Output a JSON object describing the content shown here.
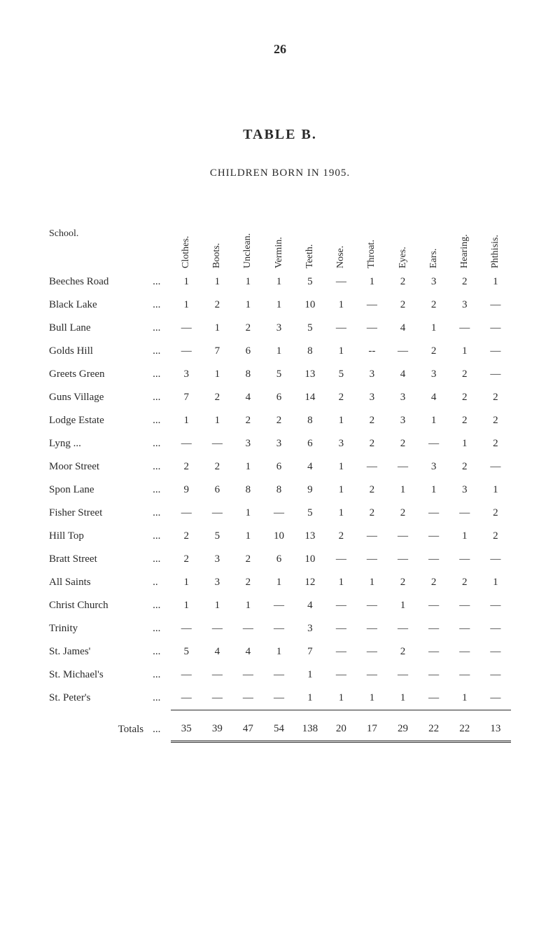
{
  "page_number": "26",
  "title": "TABLE B.",
  "subtitle": "CHILDREN BORN IN 1905.",
  "school_header": "School.",
  "columns": [
    "Clothes.",
    "Boots.",
    "Unclean.",
    "Vermin.",
    "Teeth.",
    "Nose.",
    "Throat.",
    "Eyes.",
    "Ears.",
    "Hearing.",
    "Phthisis."
  ],
  "rows": [
    {
      "name": "Beeches Road",
      "dots": "...",
      "values": [
        "1",
        "1",
        "1",
        "1",
        "5",
        "—",
        "1",
        "2",
        "3",
        "2",
        "1"
      ]
    },
    {
      "name": "Black Lake",
      "dots": "...",
      "values": [
        "1",
        "2",
        "1",
        "1",
        "10",
        "1",
        "—",
        "2",
        "2",
        "3",
        "—"
      ]
    },
    {
      "name": "Bull Lane",
      "dots": "...",
      "values": [
        "—",
        "1",
        "2",
        "3",
        "5",
        "—",
        "—",
        "4",
        "1",
        "—",
        "—"
      ]
    },
    {
      "name": "Golds Hill",
      "dots": "...",
      "values": [
        "—",
        "7",
        "6",
        "1",
        "8",
        "1",
        "--",
        "—",
        "2",
        "1",
        "—"
      ]
    },
    {
      "name": "Greets Green",
      "dots": "...",
      "values": [
        "3",
        "1",
        "8",
        "5",
        "13",
        "5",
        "3",
        "4",
        "3",
        "2",
        "—"
      ]
    },
    {
      "name": "Guns Village",
      "dots": "...",
      "values": [
        "7",
        "2",
        "4",
        "6",
        "14",
        "2",
        "3",
        "3",
        "4",
        "2",
        "2"
      ]
    },
    {
      "name": "Lodge Estate",
      "dots": "...",
      "values": [
        "1",
        "1",
        "2",
        "2",
        "8",
        "1",
        "2",
        "3",
        "1",
        "2",
        "2"
      ]
    },
    {
      "name": "Lyng ...",
      "dots": "...",
      "values": [
        "—",
        "—",
        "3",
        "3",
        "6",
        "3",
        "2",
        "2",
        "—",
        "1",
        "2"
      ]
    },
    {
      "name": "Moor Street",
      "dots": "...",
      "values": [
        "2",
        "2",
        "1",
        "6",
        "4",
        "1",
        "—",
        "—",
        "3",
        "2",
        "—"
      ]
    },
    {
      "name": "Spon Lane",
      "dots": "...",
      "values": [
        "9",
        "6",
        "8",
        "8",
        "9",
        "1",
        "2",
        "1",
        "1",
        "3",
        "1"
      ]
    },
    {
      "name": "Fisher Street",
      "dots": "...",
      "values": [
        "—",
        "—",
        "1",
        "—",
        "5",
        "1",
        "2",
        "2",
        "—",
        "—",
        "2"
      ]
    },
    {
      "name": "Hill Top",
      "dots": "...",
      "values": [
        "2",
        "5",
        "1",
        "10",
        "13",
        "2",
        "—",
        "—",
        "—",
        "1",
        "2"
      ]
    },
    {
      "name": "Bratt Street",
      "dots": "...",
      "values": [
        "2",
        "3",
        "2",
        "6",
        "10",
        "—",
        "—",
        "—",
        "—",
        "—",
        "—"
      ]
    },
    {
      "name": "All Saints",
      "dots": "..",
      "values": [
        "1",
        "3",
        "2",
        "1",
        "12",
        "1",
        "1",
        "2",
        "2",
        "2",
        "1"
      ]
    },
    {
      "name": "Christ Church",
      "dots": "...",
      "values": [
        "1",
        "1",
        "1",
        "—",
        "4",
        "—",
        "—",
        "1",
        "—",
        "—",
        "—"
      ]
    },
    {
      "name": "Trinity",
      "dots": "...",
      "values": [
        "—",
        "—",
        "—",
        "—",
        "3",
        "—",
        "—",
        "—",
        "—",
        "—",
        "—"
      ]
    },
    {
      "name": "St. James'",
      "dots": "...",
      "values": [
        "5",
        "4",
        "4",
        "1",
        "7",
        "—",
        "—",
        "2",
        "—",
        "—",
        "—"
      ]
    },
    {
      "name": "St. Michael's",
      "dots": "...",
      "values": [
        "—",
        "—",
        "—",
        "—",
        "1",
        "—",
        "—",
        "—",
        "—",
        "—",
        "—"
      ]
    },
    {
      "name": "St. Peter's",
      "dots": "...",
      "values": [
        "—",
        "—",
        "—",
        "—",
        "1",
        "1",
        "1",
        "1",
        "—",
        "1",
        "—"
      ]
    }
  ],
  "totals": {
    "label": "Totals",
    "dots": "...",
    "values": [
      "35",
      "39",
      "47",
      "54",
      "138",
      "20",
      "17",
      "29",
      "22",
      "22",
      "13"
    ]
  }
}
